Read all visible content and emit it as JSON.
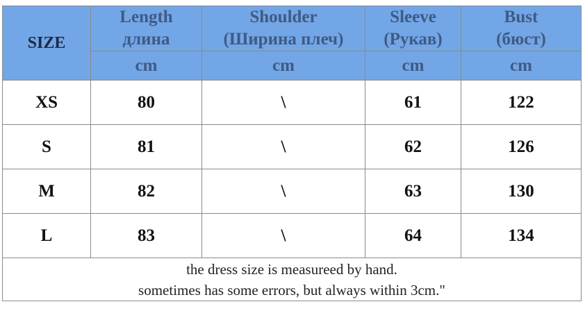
{
  "header": {
    "size": "SIZE",
    "columns": [
      {
        "name": "Length",
        "name_ru": "длина",
        "unit": "cm"
      },
      {
        "name": "Shoulder",
        "name_ru": "(Ширина плеч)",
        "unit": "cm"
      },
      {
        "name": "Sleeve",
        "name_ru": "(Рукав)",
        "unit": "cm"
      },
      {
        "name": "Bust",
        "name_ru": "(бюст)",
        "unit": "cm"
      }
    ]
  },
  "table": {
    "rows": [
      [
        "XS",
        80,
        "\\",
        61,
        122
      ],
      [
        "S",
        81,
        "\\",
        62,
        126
      ],
      [
        "M",
        82,
        "\\",
        63,
        130
      ],
      [
        "L",
        83,
        "\\",
        64,
        134
      ]
    ]
  },
  "footer": {
    "lines": [
      "the dress size is measureed by hand.",
      "sometimes has some errors, but always within 3cm.\""
    ]
  }
}
